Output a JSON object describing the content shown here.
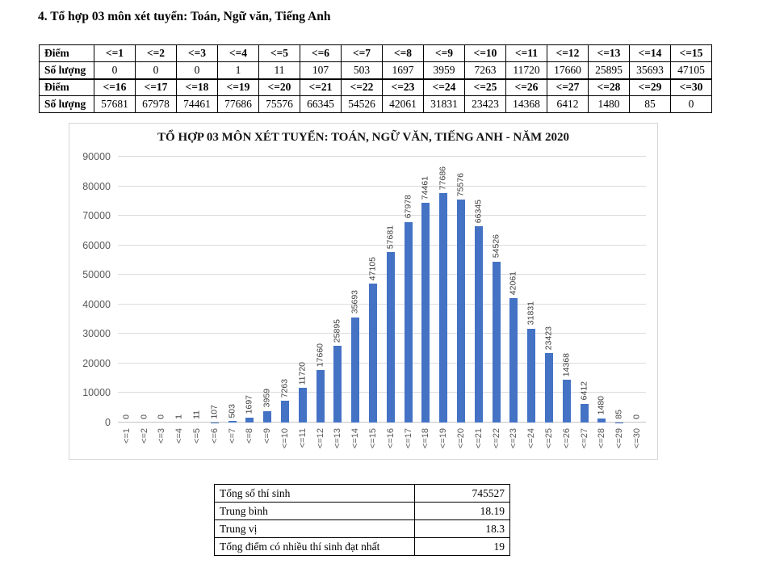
{
  "page": {
    "heading": "4. Tổ hợp 03 môn xét tuyển: Toán, Ngữ văn, Tiếng Anh"
  },
  "score_table": {
    "rows": [
      {
        "label": "Điểm",
        "bold": true,
        "cells": [
          "<=1",
          "<=2",
          "<=3",
          "<=4",
          "<=5",
          "<=6",
          "<=7",
          "<=8",
          "<=9",
          "<=10",
          "<=11",
          "<=12",
          "<=13",
          "<=14",
          "<=15"
        ]
      },
      {
        "label": "Số lượng",
        "bold": false,
        "cells": [
          "0",
          "0",
          "0",
          "1",
          "11",
          "107",
          "503",
          "1697",
          "3959",
          "7263",
          "11720",
          "17660",
          "25895",
          "35693",
          "47105"
        ]
      },
      {
        "label": "Điểm",
        "bold": true,
        "cells": [
          "<=16",
          "<=17",
          "<=18",
          "<=19",
          "<=20",
          "<=21",
          "<=22",
          "<=23",
          "<=24",
          "<=25",
          "<=26",
          "<=27",
          "<=28",
          "<=29",
          "<=30"
        ]
      },
      {
        "label": "Số lượng",
        "bold": false,
        "cells": [
          "57681",
          "67978",
          "74461",
          "77686",
          "75576",
          "66345",
          "54526",
          "42061",
          "31831",
          "23423",
          "14368",
          "6412",
          "1480",
          "85",
          "0"
        ]
      }
    ]
  },
  "chart_data": {
    "type": "bar",
    "title": "TỔ HỢP 03 MÔN XÉT TUYỂN: TOÁN, NGỮ VĂN, TIẾNG ANH - NĂM 2020",
    "categories": [
      "<=1",
      "<=2",
      "<=3",
      "<=4",
      "<=5",
      "<=6",
      "<=7",
      "<=8",
      "<=9",
      "<=10",
      "<=11",
      "<=12",
      "<=13",
      "<=14",
      "<=15",
      "<=16",
      "<=17",
      "<=18",
      "<=19",
      "<=20",
      "<=21",
      "<=22",
      "<=23",
      "<=24",
      "<=25",
      "<=26",
      "<=27",
      "<=28",
      "<=29",
      "<=30"
    ],
    "values": [
      0,
      0,
      0,
      1,
      11,
      107,
      503,
      1697,
      3959,
      7263,
      11720,
      17660,
      25895,
      35693,
      47105,
      57681,
      67978,
      74461,
      77686,
      75576,
      66345,
      54526,
      42061,
      31831,
      23423,
      14368,
      6412,
      1480,
      85,
      0
    ],
    "xlabel": "",
    "ylabel": "",
    "ylim": [
      0,
      90000
    ],
    "ytick_step": 10000,
    "grid": true,
    "legend": "none",
    "data_labels": true,
    "data_labels_rotated": true,
    "x_labels_rotated": true,
    "bar_color": "#4472C4",
    "gridline_color": "#DCDCDC",
    "axis_label_color": "#595959"
  },
  "summary_table": {
    "rows": [
      {
        "label": "Tổng số thí sinh",
        "value": "745527"
      },
      {
        "label": "Trung bình",
        "value": "18.19"
      },
      {
        "label": "Trung vị",
        "value": "18.3"
      },
      {
        "label": "Tổng điểm có nhiều thí sinh đạt nhất",
        "value": "19"
      }
    ]
  }
}
